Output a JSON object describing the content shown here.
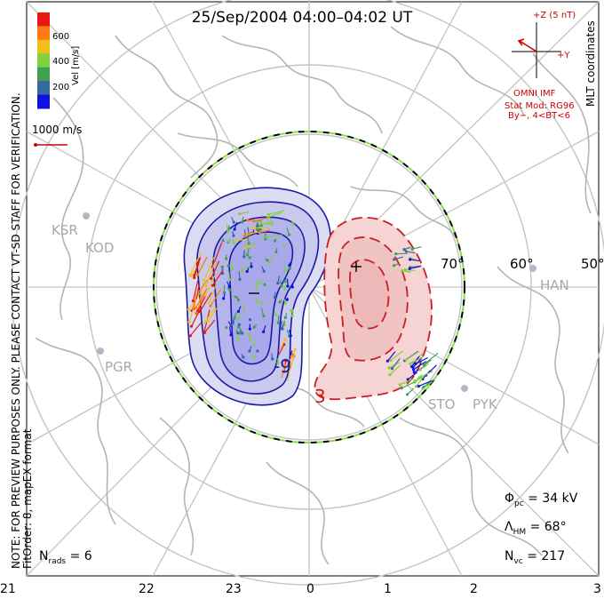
{
  "header": {
    "title": "25/Sep/2004 04:00–04:02 UT"
  },
  "left_note": {
    "line1": "NOTE: FOR PREVIEW PURPOSES ONLY. PLEASE CONTACT VT-SD STAFF FOR VERIFICATION.",
    "line2": "FitOrder: 8, mapEX format"
  },
  "coords_label": "MLT coordinates",
  "color_scale": {
    "label": "Vel [m/s]",
    "ticks": [
      "600",
      "400",
      "200"
    ],
    "colors": [
      "#e81818",
      "#ff7a10",
      "#f0c018",
      "#80d040",
      "#40a050",
      "#3868a0",
      "#1010e0"
    ]
  },
  "vector_reference": {
    "label": "1000 m/s",
    "color": "#d00000"
  },
  "imf": {
    "z_label": "+Z (5 nT)",
    "y_label": "+Y",
    "source": "OMNI IMF",
    "model": "Stat Mod: RG96",
    "condition": "By−, 4<BT<6",
    "color": "#d00000"
  },
  "latitude_labels": [
    "70°",
    "60°",
    "50°"
  ],
  "stations": [
    "KSR",
    "KOD",
    "PGR",
    "HAN",
    "STO",
    "PYK"
  ],
  "contour_labels": [
    "-9",
    "3"
  ],
  "stats": {
    "phi_pc": {
      "symbol": "Φ",
      "sub": "pc",
      "value": "= 34 kV"
    },
    "lambda_hm": {
      "symbol": "Λ",
      "sub": "HM",
      "value": "= 68°"
    },
    "n_vc": {
      "symbol": "N",
      "sub": "vc",
      "value": "= 217"
    },
    "n_rads": {
      "symbol": "N",
      "sub": "rads",
      "value": "= 6"
    }
  },
  "mlt_axis": [
    "21",
    "22",
    "23",
    "0",
    "1",
    "2",
    "3"
  ],
  "colors": {
    "negative_cell_fill": "#c8c8f0",
    "negative_cell_line": "#1a1aa8",
    "positive_cell_fill": "#f4cccc",
    "positive_cell_line": "#c82020",
    "land": "#b4b4b4",
    "boundary_dash_a": "#000000",
    "boundary_dash_b": "#88dd44"
  }
}
